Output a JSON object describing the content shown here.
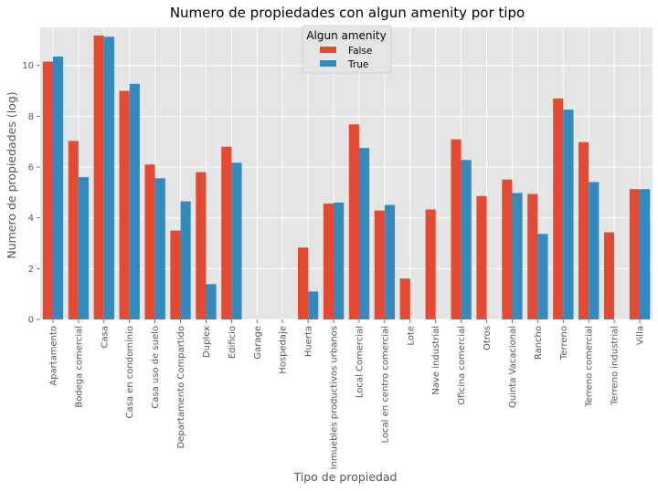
{
  "chart_data": {
    "type": "bar",
    "title": "Numero de propiedades con algun amenity por tipo",
    "xlabel": "Tipo de propiedad",
    "ylabel": "Numero de propiedades (log)",
    "ylim": [
      0,
      11.5
    ],
    "yticks": [
      0,
      2,
      4,
      6,
      8,
      10
    ],
    "grid": true,
    "legend": {
      "title": "Algun amenity",
      "position": "top-center"
    },
    "categories": [
      "Apartamento",
      "Bodega comercial",
      "Casa",
      "Casa en condominio",
      "Casa uso de suelo",
      "Departamento Compartido",
      "Duplex",
      "Edificio",
      "Garage",
      "Hospedaje",
      "Huerta",
      "Inmuebles productivos urbanos",
      "Local Comercial",
      "Local en centro comercial",
      "Lote",
      "Nave industrial",
      "Oficina comercial",
      "Otros",
      "Quinta Vacacional",
      "Rancho",
      "Terreno",
      "Terreno comercial",
      "Terreno industrial",
      "Villa"
    ],
    "series": [
      {
        "name": "False",
        "color": "#E24A33",
        "values": [
          10.15,
          7.03,
          11.18,
          9.0,
          6.1,
          3.5,
          5.8,
          6.8,
          0,
          0,
          2.83,
          4.56,
          7.68,
          4.29,
          1.61,
          4.33,
          7.09,
          4.86,
          5.51,
          4.94,
          8.7,
          6.98,
          3.43,
          5.13
        ]
      },
      {
        "name": "True",
        "color": "#348ABD",
        "values": [
          10.35,
          5.6,
          11.13,
          9.28,
          5.56,
          4.65,
          1.39,
          6.17,
          0,
          0,
          1.1,
          4.6,
          6.75,
          4.51,
          0,
          0,
          6.28,
          0,
          4.98,
          3.37,
          8.26,
          5.41,
          0,
          5.13
        ]
      }
    ]
  },
  "colors": {
    "plot_background": "#E5E5E5",
    "grid": "#FFFFFF",
    "figure_background": "#FFFFFF"
  }
}
